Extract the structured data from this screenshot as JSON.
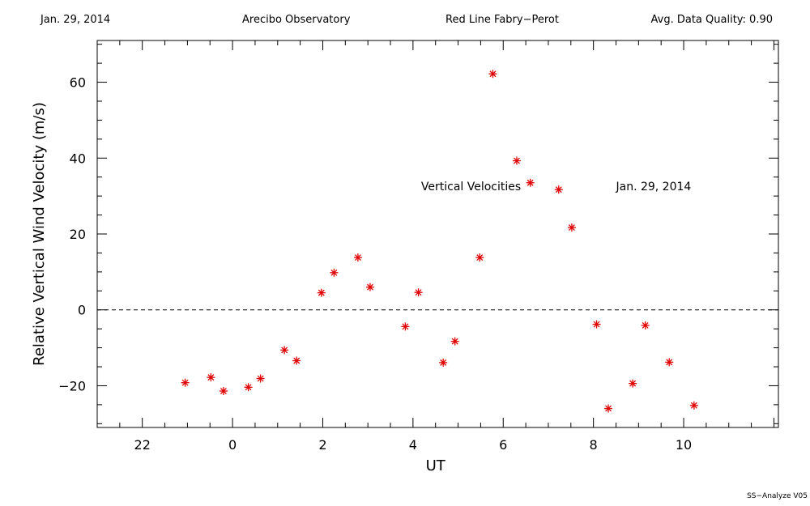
{
  "header": {
    "date": "Jan. 29, 2014",
    "observatory": "Arecibo Observatory",
    "instrument": "Red Line Fabry−Perot",
    "quality": "Avg. Data Quality: 0.90"
  },
  "footer": {
    "version": "SS−Analyze V05"
  },
  "chart_data": {
    "type": "scatter",
    "xlabel": "UT",
    "ylabel": "Relative Vertical Wind Velocity (m/s)",
    "xlim": [
      -3,
      12.1
    ],
    "ylim": [
      -31,
      71
    ],
    "x_ticks": [
      22,
      0,
      2,
      4,
      6,
      8,
      10
    ],
    "x_tick_positions": [
      -2,
      0,
      2,
      4,
      6,
      8,
      10
    ],
    "y_ticks": [
      -20,
      0,
      20,
      40,
      60
    ],
    "annotations": [
      "Vertical Velocities",
      "Jan. 29, 2014"
    ],
    "zero_line": true,
    "marker": "asterisk",
    "marker_color": "#e00000",
    "points": [
      {
        "x": -1.05,
        "y": -19.2
      },
      {
        "x": -0.48,
        "y": -17.8
      },
      {
        "x": -0.2,
        "y": -21.4
      },
      {
        "x": 0.35,
        "y": -20.4
      },
      {
        "x": 0.62,
        "y": -18.1
      },
      {
        "x": 1.15,
        "y": -10.6
      },
      {
        "x": 1.42,
        "y": -13.4
      },
      {
        "x": 1.97,
        "y": 4.5
      },
      {
        "x": 2.25,
        "y": 9.8
      },
      {
        "x": 2.78,
        "y": 13.8
      },
      {
        "x": 3.05,
        "y": 6.0
      },
      {
        "x": 3.83,
        "y": -4.4
      },
      {
        "x": 4.12,
        "y": 4.6
      },
      {
        "x": 4.67,
        "y": -13.9
      },
      {
        "x": 4.93,
        "y": -8.3
      },
      {
        "x": 5.48,
        "y": 13.8
      },
      {
        "x": 5.77,
        "y": 62.2
      },
      {
        "x": 6.3,
        "y": 39.3
      },
      {
        "x": 6.6,
        "y": 33.5
      },
      {
        "x": 7.23,
        "y": 31.7
      },
      {
        "x": 7.52,
        "y": 21.7
      },
      {
        "x": 8.07,
        "y": -3.8
      },
      {
        "x": 8.33,
        "y": -26.0
      },
      {
        "x": 8.87,
        "y": -19.4
      },
      {
        "x": 9.15,
        "y": -4.1
      },
      {
        "x": 9.68,
        "y": -13.8
      },
      {
        "x": 10.23,
        "y": -25.2
      }
    ]
  }
}
